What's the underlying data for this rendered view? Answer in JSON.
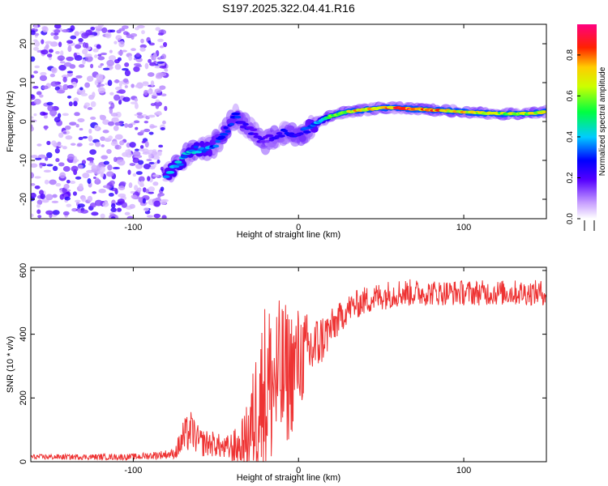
{
  "title": "S197.2025.322.04.41.R16",
  "chart_data": [
    {
      "type": "heatmap",
      "name": "spectrogram",
      "xlabel": "Height of straight line (km)",
      "ylabel": "Frequency (Hz)",
      "xlim": [
        -162,
        150
      ],
      "ylim": [
        -25,
        25
      ],
      "xticks": [
        -100,
        0,
        100
      ],
      "yticks": [
        -20,
        -10,
        0,
        10,
        20
      ],
      "noise_region_x": [
        -162,
        -80
      ],
      "ridge": {
        "x": [
          -80,
          -75,
          -68,
          -62,
          -55,
          -48,
          -42,
          -38,
          -35,
          -30,
          -25,
          -20,
          -15,
          -10,
          -5,
          0,
          5,
          10,
          15,
          20,
          25,
          30,
          40,
          50,
          60,
          70,
          80,
          90,
          100,
          110,
          120,
          130,
          140,
          150
        ],
        "y": [
          -14,
          -12,
          -9,
          -7,
          -7,
          -5,
          -1,
          1,
          0,
          -2,
          -4,
          -5,
          -4,
          -3,
          -3,
          -4,
          -2,
          -0.5,
          0.5,
          1.5,
          2,
          2.5,
          3,
          3.5,
          3.5,
          3.2,
          3,
          2.8,
          2.5,
          2.2,
          2,
          2,
          2,
          2.5
        ],
        "amplitude": [
          0.4,
          0.45,
          0.45,
          0.45,
          0.4,
          0.35,
          0.35,
          0.35,
          0.3,
          0.25,
          0.25,
          0.2,
          0.25,
          0.3,
          0.3,
          0.3,
          0.35,
          0.4,
          0.5,
          0.6,
          0.7,
          0.75,
          0.85,
          0.9,
          0.9,
          0.95,
          0.9,
          0.85,
          0.8,
          0.75,
          0.7,
          0.7,
          0.75,
          0.75
        ]
      },
      "colorbar": {
        "label": "Normalized spectral amplitude",
        "range": [
          0,
          0.95
        ],
        "ticks": [
          "0.0",
          "0.2",
          "0.4",
          "0.6",
          "0.8"
        ]
      }
    },
    {
      "type": "line",
      "name": "snr",
      "xlabel": "Height of straight line (km)",
      "ylabel": "SNR (10 * v/v)",
      "xlim": [
        -162,
        150
      ],
      "ylim": [
        0,
        610
      ],
      "xticks": [
        -100,
        0,
        100
      ],
      "yticks": [
        0,
        200,
        400,
        600
      ],
      "color": "#ee3333",
      "envelope": {
        "x": [
          -162,
          -100,
          -75,
          -70,
          -65,
          -60,
          -50,
          -45,
          -35,
          -30,
          -25,
          -20,
          -15,
          -10,
          -5,
          0,
          5,
          10,
          15,
          20,
          25,
          30,
          40,
          50,
          60,
          80,
          100,
          120,
          150
        ],
        "mean": [
          15,
          15,
          25,
          70,
          100,
          60,
          55,
          40,
          50,
          80,
          170,
          220,
          250,
          260,
          280,
          320,
          340,
          360,
          390,
          420,
          450,
          480,
          505,
          520,
          530,
          530,
          530,
          530,
          530
        ],
        "amp": [
          8,
          10,
          15,
          60,
          60,
          45,
          40,
          35,
          70,
          120,
          220,
          300,
          260,
          250,
          210,
          170,
          130,
          100,
          80,
          60,
          50,
          45,
          45,
          45,
          45,
          40,
          40,
          40,
          40
        ]
      }
    }
  ]
}
